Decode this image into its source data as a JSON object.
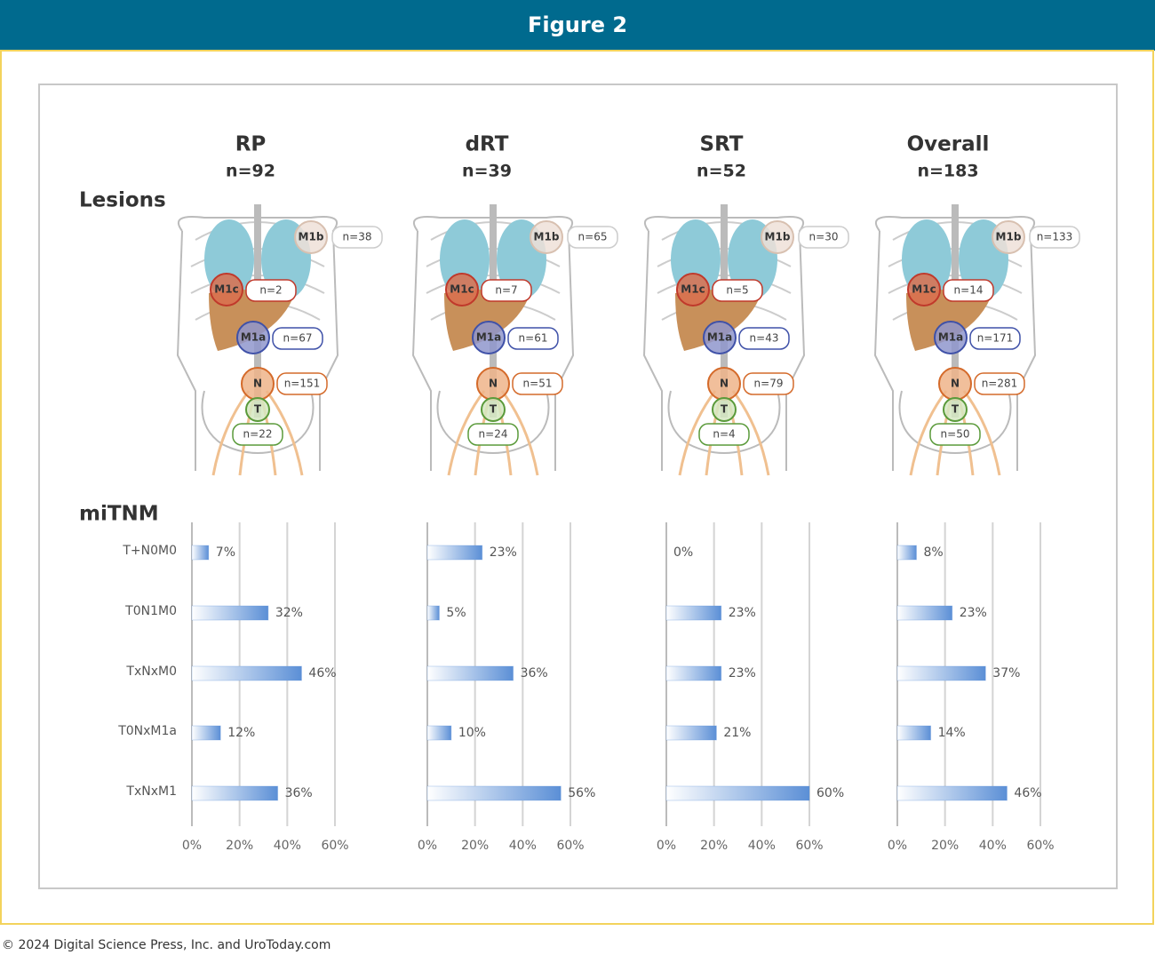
{
  "header": {
    "title": "Figure 2"
  },
  "footer": "© 2024 Digital Science Press, Inc. and UroToday.com",
  "section_labels": {
    "lesions": "Lesions",
    "mitnm": "miTNM"
  },
  "body_maps": [
    {
      "sites": [
        {
          "site": "M1b",
          "count": "n=38"
        },
        {
          "site": "M1c",
          "count": "n=2"
        },
        {
          "site": "M1a",
          "count": "n=67"
        },
        {
          "site": "N",
          "count": "n=151"
        },
        {
          "site": "T",
          "count": "n=22"
        }
      ]
    },
    {
      "sites": [
        {
          "site": "M1b",
          "count": "n=65"
        },
        {
          "site": "M1c",
          "count": "n=7"
        },
        {
          "site": "M1a",
          "count": "n=61"
        },
        {
          "site": "N",
          "count": "n=51"
        },
        {
          "site": "T",
          "count": "n=24"
        }
      ]
    },
    {
      "sites": [
        {
          "site": "M1b",
          "count": "n=30"
        },
        {
          "site": "M1c",
          "count": "n=5"
        },
        {
          "site": "M1a",
          "count": "n=43"
        },
        {
          "site": "N",
          "count": "n=79"
        },
        {
          "site": "T",
          "count": "n=4"
        }
      ]
    },
    {
      "sites": [
        {
          "site": "M1b",
          "count": "n=133"
        },
        {
          "site": "M1c",
          "count": "n=14"
        },
        {
          "site": "M1a",
          "count": "n=171"
        },
        {
          "site": "N",
          "count": "n=281"
        },
        {
          "site": "T",
          "count": "n=50"
        }
      ]
    }
  ],
  "chart_data": [
    {
      "type": "bar",
      "orientation": "horizontal",
      "title": "RP",
      "subtitle": "n=92",
      "color": "#5b8fd6",
      "grid": true,
      "categories": [
        "T+N0M0",
        "T0N1M0",
        "TxNxM0",
        "T0NxM1a",
        "TxNxM1"
      ],
      "values": [
        7,
        32,
        46,
        12,
        36
      ],
      "value_labels": [
        "7%",
        "32%",
        "46%",
        "12%",
        "36%"
      ],
      "xlim": [
        0,
        60
      ],
      "xticks": [
        {
          "value": 0,
          "label": "0%"
        },
        {
          "value": 20,
          "label": "20%"
        },
        {
          "value": 40,
          "label": "40%"
        },
        {
          "value": 60,
          "label": "60%"
        }
      ]
    },
    {
      "type": "bar",
      "orientation": "horizontal",
      "title": "dRT",
      "subtitle": "n=39",
      "color": "#5b8fd6",
      "grid": true,
      "categories": [
        null,
        null,
        null,
        null,
        null
      ],
      "values": [
        23,
        5,
        36,
        10,
        56
      ],
      "value_labels": [
        "23%",
        "5%",
        "36%",
        "10%",
        "56%"
      ],
      "xlim": [
        0,
        60
      ],
      "xticks": [
        {
          "value": 0,
          "label": "0%"
        },
        {
          "value": 20,
          "label": "20%"
        },
        {
          "value": 40,
          "label": "40%"
        },
        {
          "value": 60,
          "label": "60%"
        }
      ]
    },
    {
      "type": "bar",
      "orientation": "horizontal",
      "title": "SRT",
      "subtitle": "n=52",
      "color": "#5b8fd6",
      "grid": true,
      "categories": [
        null,
        null,
        null,
        null,
        null
      ],
      "values": [
        0,
        23,
        23,
        21,
        60
      ],
      "value_labels": [
        "0%",
        "23%",
        "23%",
        "21%",
        "60%"
      ],
      "xlim": [
        0,
        60
      ],
      "xticks": [
        {
          "value": 0,
          "label": "0%"
        },
        {
          "value": 20,
          "label": "20%"
        },
        {
          "value": 40,
          "label": "40%"
        },
        {
          "value": 60,
          "label": "60%"
        }
      ]
    },
    {
      "type": "bar",
      "orientation": "horizontal",
      "title": "Overall",
      "subtitle": "n=183",
      "color": "#5b8fd6",
      "grid": true,
      "categories": [
        null,
        null,
        null,
        null,
        null
      ],
      "values": [
        8,
        23,
        37,
        14,
        46
      ],
      "value_labels": [
        "8%",
        "23%",
        "37%",
        "14%",
        "46%"
      ],
      "xlim": [
        0,
        60
      ],
      "xticks": [
        {
          "value": 0,
          "label": "0%"
        },
        {
          "value": 20,
          "label": "20%"
        },
        {
          "value": 40,
          "label": "40%"
        },
        {
          "value": 60,
          "label": "60%"
        }
      ]
    }
  ]
}
